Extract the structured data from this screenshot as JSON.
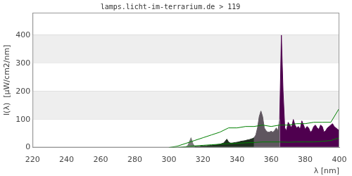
{
  "chart_data": {
    "type": "line",
    "title": "lamps.licht-im-terrarium.de > 119",
    "x_label": "λ [nm]",
    "y_label": "I(λ)  [µW/cm2/nm]",
    "xlim": [
      220,
      400
    ],
    "xticks": [
      220,
      240,
      260,
      280,
      300,
      320,
      340,
      360,
      380,
      400
    ],
    "ylim": [
      0,
      480
    ],
    "yticks": [
      0,
      100,
      200,
      300,
      400
    ],
    "grid": true,
    "series": [
      {
        "type": "area",
        "color": "#7a7a7a",
        "x": [
          300,
          301,
          302,
          303,
          304,
          305,
          306,
          307,
          308,
          309,
          310,
          311,
          312,
          313,
          314,
          315
        ],
        "values": [
          0,
          0,
          0,
          0,
          0,
          0,
          1,
          1,
          1,
          2,
          3,
          6,
          20,
          35,
          15,
          5
        ]
      },
      {
        "type": "area",
        "color": "#1f2f1f",
        "x": [
          315,
          316,
          317,
          318,
          319,
          320,
          321,
          322,
          323,
          324,
          325,
          326,
          327,
          328,
          329,
          330,
          331,
          332,
          333,
          334,
          335,
          336,
          337,
          338,
          339,
          340,
          341,
          342,
          343,
          344,
          345,
          346,
          347,
          348,
          349,
          350
        ],
        "values": [
          5,
          4,
          4,
          4,
          5,
          5,
          6,
          6,
          7,
          7,
          8,
          9,
          9,
          10,
          11,
          12,
          14,
          16,
          22,
          30,
          20,
          16,
          16,
          17,
          18,
          19,
          20,
          22,
          23,
          24,
          25,
          27,
          28,
          30,
          32,
          35
        ]
      },
      {
        "type": "area",
        "color": "#5f565f",
        "x": [
          350,
          351,
          352,
          353,
          354,
          355,
          356,
          357,
          358,
          359,
          360,
          361,
          362,
          363,
          364,
          365
        ],
        "values": [
          35,
          45,
          70,
          110,
          130,
          110,
          70,
          60,
          55,
          55,
          58,
          55,
          60,
          70,
          60,
          100
        ]
      },
      {
        "type": "area",
        "color": "#4f004f",
        "x": [
          365,
          366,
          367,
          368,
          369,
          370,
          371,
          372,
          373,
          374,
          375,
          376,
          377,
          378,
          379,
          380,
          381,
          382,
          383,
          384,
          385,
          386,
          387,
          388,
          389,
          390,
          391,
          392,
          393,
          394,
          395,
          396,
          397,
          398,
          399,
          400
        ],
        "values": [
          100,
          400,
          200,
          70,
          60,
          90,
          80,
          70,
          100,
          80,
          70,
          75,
          65,
          95,
          80,
          65,
          75,
          70,
          55,
          60,
          75,
          80,
          70,
          65,
          80,
          75,
          55,
          60,
          70,
          75,
          80,
          85,
          75,
          70,
          65,
          60
        ]
      },
      {
        "type": "line",
        "color": "#008000",
        "x": [
          300,
          305,
          310,
          315,
          320,
          325,
          330,
          335,
          340,
          345,
          350,
          355,
          360,
          365,
          370,
          375,
          380,
          385,
          390,
          395,
          400
        ],
        "values": [
          0,
          5,
          15,
          25,
          35,
          45,
          55,
          70,
          70,
          75,
          75,
          80,
          75,
          80,
          80,
          85,
          85,
          90,
          90,
          90,
          140
        ]
      },
      {
        "type": "line",
        "color": "#008000",
        "x": [
          300,
          305,
          310,
          315,
          320,
          325,
          330,
          335,
          340,
          345,
          350,
          355,
          360,
          365,
          370,
          375,
          380,
          385,
          390,
          395,
          400
        ],
        "values": [
          0,
          0,
          3,
          6,
          8,
          10,
          12,
          14,
          15,
          17,
          18,
          20,
          20,
          20,
          19,
          20,
          20,
          20,
          22,
          25,
          35
        ]
      }
    ]
  }
}
